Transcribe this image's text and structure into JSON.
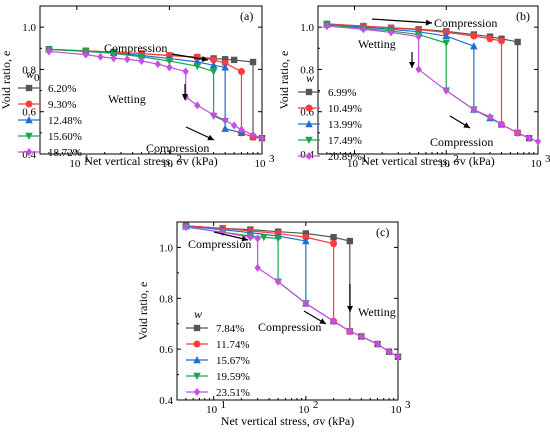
{
  "figure": {
    "panels": [
      {
        "label": "(a)",
        "ylabel": "Void ratio, e",
        "xlabel": "Net vertical stress, σv (kPa)",
        "legend_title": "w0",
        "annotations": [
          "Compression",
          "Wetting",
          "Compression"
        ]
      },
      {
        "label": "(b)",
        "ylabel": "Void ratio, e",
        "xlabel": "Net vertical stress, σv (kPa)",
        "legend_title": "w",
        "annotations": [
          "Compression",
          "Wetting",
          "Compression"
        ]
      },
      {
        "label": "(c)",
        "ylabel": "Void ratio, e",
        "xlabel": "Net vertical stress, σv (kPa)",
        "legend_title": "w",
        "annotations": [
          "Compression",
          "Wetting",
          "Compression"
        ]
      }
    ]
  },
  "chart_data": [
    {
      "type": "line",
      "label": "(a)",
      "xlabel": "Net vertical stress, σv (kPa)",
      "ylabel": "Void ratio, e",
      "xscale": "log",
      "xlim": [
        4,
        1000
      ],
      "ylim": [
        0.4,
        1.1
      ],
      "xticks": [
        "10",
        "10",
        "10"
      ],
      "xtick_exponents": [
        "1",
        "2",
        "3"
      ],
      "yticks": [
        "0.4",
        "0.6",
        "0.8",
        "1.0"
      ],
      "legend_title": "w0",
      "legend_position": "left",
      "series": [
        {
          "name": "6.20%",
          "color": "#555555",
          "marker": "square",
          "x": [
            5,
            12.5,
            25,
            50,
            100,
            200,
            300,
            400,
            500,
            800,
            800,
            1000
          ],
          "y": [
            0.895,
            0.888,
            0.882,
            0.875,
            0.866,
            0.858,
            0.852,
            0.848,
            0.845,
            0.835,
            0.48,
            0.475
          ]
        },
        {
          "name": "9.30%",
          "color": "#ff3b3b",
          "marker": "circle",
          "x": [
            5,
            12.5,
            25,
            50,
            100,
            200,
            300,
            400,
            600,
            600,
            800
          ],
          "y": [
            0.895,
            0.888,
            0.882,
            0.875,
            0.866,
            0.858,
            0.845,
            0.83,
            0.79,
            0.5,
            0.48
          ]
        },
        {
          "name": "12.48%",
          "color": "#1f6fd1",
          "marker": "triangle-up",
          "x": [
            5,
            12.5,
            25,
            50,
            100,
            200,
            300,
            400,
            400,
            600
          ],
          "y": [
            0.895,
            0.886,
            0.878,
            0.866,
            0.852,
            0.835,
            0.82,
            0.81,
            0.52,
            0.5
          ]
        },
        {
          "name": "15.60%",
          "color": "#1aa84a",
          "marker": "triangle-down",
          "x": [
            5,
            12.5,
            25,
            50,
            100,
            200,
            300,
            300,
            400
          ],
          "y": [
            0.895,
            0.885,
            0.876,
            0.86,
            0.84,
            0.815,
            0.79,
            0.58,
            0.555
          ]
        },
        {
          "name": "18.72%",
          "color": "#c44fe0",
          "marker": "diamond",
          "x": [
            5,
            12.5,
            18,
            25,
            35,
            50,
            75,
            100,
            150,
            150,
            200,
            300,
            400,
            500,
            600,
            800,
            1000
          ],
          "y": [
            0.885,
            0.87,
            0.86,
            0.853,
            0.848,
            0.84,
            0.825,
            0.81,
            0.79,
            0.67,
            0.63,
            0.585,
            0.56,
            0.535,
            0.515,
            0.49,
            0.475
          ]
        }
      ],
      "annotations": [
        {
          "text": "Compression",
          "x": 60,
          "y": 0.915
        },
        {
          "text": "Wetting",
          "x": 60,
          "y": 0.685
        },
        {
          "text": "Compression",
          "x": 100,
          "y": 0.49
        }
      ]
    },
    {
      "type": "line",
      "label": "(b)",
      "xlabel": "Net vertical stress, σv (kPa)",
      "ylabel": "Void ratio, e",
      "xscale": "log",
      "xlim": [
        4,
        1000
      ],
      "ylim": [
        0.4,
        1.1
      ],
      "xticks": [
        "10",
        "10",
        "10"
      ],
      "xtick_exponents": [
        "1",
        "2",
        "3"
      ],
      "yticks": [
        "0.4",
        "0.6",
        "0.8",
        "1.0"
      ],
      "legend_title": "w",
      "legend_position": "left",
      "series": [
        {
          "name": "6.99%",
          "color": "#555555",
          "marker": "square",
          "x": [
            5,
            12.5,
            25,
            50,
            100,
            200,
            300,
            400,
            600,
            600,
            800
          ],
          "y": [
            1.015,
            1.005,
            0.997,
            0.99,
            0.98,
            0.965,
            0.955,
            0.945,
            0.93,
            0.5,
            0.475
          ]
        },
        {
          "name": "10.49%",
          "color": "#ff3b3b",
          "marker": "circle",
          "x": [
            5,
            12.5,
            25,
            50,
            100,
            200,
            300,
            400,
            400,
            600
          ],
          "y": [
            1.015,
            1.005,
            0.996,
            0.988,
            0.975,
            0.958,
            0.945,
            0.935,
            0.54,
            0.5
          ]
        },
        {
          "name": "13.99%",
          "color": "#1f6fd1",
          "marker": "triangle-up",
          "x": [
            5,
            12.5,
            25,
            50,
            100,
            200,
            200,
            300,
            400
          ],
          "y": [
            1.012,
            1.0,
            0.99,
            0.978,
            0.958,
            0.91,
            0.61,
            0.57,
            0.54
          ]
        },
        {
          "name": "17.49%",
          "color": "#1aa84a",
          "marker": "triangle-down",
          "x": [
            5,
            12.5,
            25,
            50,
            100,
            100,
            200,
            300
          ],
          "y": [
            1.01,
            0.995,
            0.982,
            0.965,
            0.925,
            0.7,
            0.61,
            0.57
          ]
        },
        {
          "name": "20.89%",
          "color": "#c44fe0",
          "marker": "diamond",
          "x": [
            5,
            12.5,
            25,
            50,
            50,
            100,
            200,
            300,
            400,
            600,
            800,
            1000
          ],
          "y": [
            1.005,
            0.99,
            0.975,
            0.955,
            0.8,
            0.7,
            0.61,
            0.575,
            0.54,
            0.5,
            0.475,
            0.46
          ]
        }
      ],
      "annotations": [
        {
          "text": "Compression",
          "x": 130,
          "y": 1.025
        },
        {
          "text": "Wetting",
          "x": 30,
          "y": 0.88
        },
        {
          "text": "Compression",
          "x": 100,
          "y": 0.6
        }
      ]
    },
    {
      "type": "line",
      "label": "(c)",
      "xlabel": "Net vertical stress, σv (kPa)",
      "ylabel": "Void ratio, e",
      "xscale": "log",
      "xlim": [
        4,
        1000
      ],
      "ylim": [
        0.4,
        1.1
      ],
      "xticks": [
        "10",
        "10",
        "10"
      ],
      "xtick_exponents": [
        "1",
        "2",
        "3"
      ],
      "yticks": [
        "0.4",
        "0.6",
        "0.8",
        "1.0"
      ],
      "legend_title": "w",
      "legend_position": "left",
      "series": [
        {
          "name": "7.84%",
          "color": "#555555",
          "marker": "square",
          "x": [
            5,
            12.5,
            25,
            50,
            100,
            200,
            300,
            300,
            400,
            600,
            800,
            1000
          ],
          "y": [
            1.085,
            1.075,
            1.07,
            1.062,
            1.055,
            1.04,
            1.025,
            0.67,
            0.65,
            0.62,
            0.59,
            0.57
          ]
        },
        {
          "name": "11.74%",
          "color": "#ff3b3b",
          "marker": "circle",
          "x": [
            5,
            12.5,
            25,
            50,
            100,
            200,
            200,
            300
          ],
          "y": [
            1.085,
            1.075,
            1.065,
            1.055,
            1.04,
            1.015,
            0.71,
            0.67
          ]
        },
        {
          "name": "15.67%",
          "color": "#1f6fd1",
          "marker": "triangle-up",
          "x": [
            5,
            12.5,
            25,
            50,
            100,
            100,
            200
          ],
          "y": [
            1.083,
            1.07,
            1.058,
            1.045,
            1.025,
            0.78,
            0.71
          ]
        },
        {
          "name": "19.59%",
          "color": "#1aa84a",
          "marker": "triangle-down",
          "x": [
            5,
            12.5,
            25,
            35,
            50,
            50,
            100
          ],
          "y": [
            1.08,
            1.06,
            1.045,
            1.04,
            1.035,
            0.865,
            0.78
          ]
        },
        {
          "name": "23.51%",
          "color": "#c44fe0",
          "marker": "diamond",
          "x": [
            5,
            12.5,
            25,
            30,
            30,
            50,
            100,
            200,
            300,
            400,
            600,
            800,
            1000
          ],
          "y": [
            1.08,
            1.06,
            1.04,
            1.035,
            0.92,
            0.865,
            0.78,
            0.71,
            0.67,
            0.65,
            0.62,
            0.59,
            0.57
          ]
        }
      ],
      "annotations": [
        {
          "text": "Compression",
          "x": 10,
          "y": 1.02
        },
        {
          "text": "Wetting",
          "x": 500,
          "y": 0.87
        },
        {
          "text": "Compression",
          "x": 100,
          "y": 0.74
        }
      ]
    }
  ]
}
